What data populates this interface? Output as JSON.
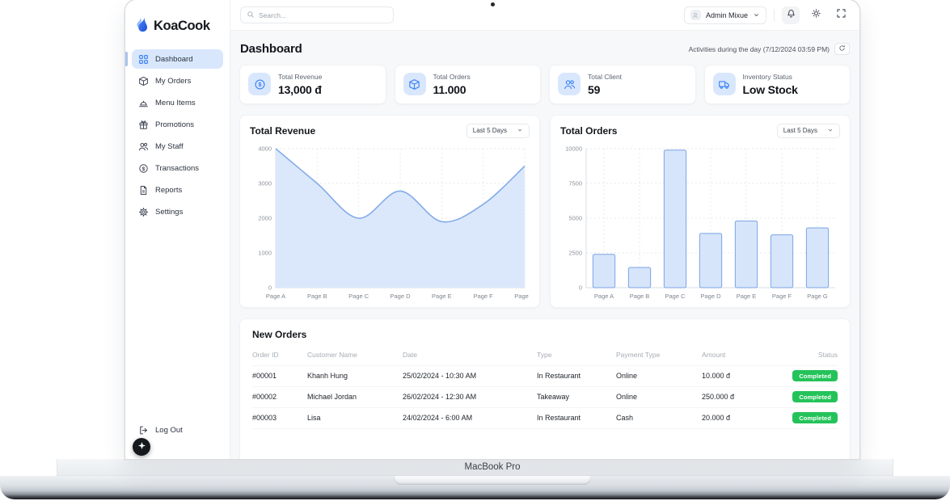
{
  "device": {
    "label": "MacBook Pro"
  },
  "sidebar": {
    "logo": "KoaCook",
    "items": [
      {
        "label": "Dashboard",
        "icon": "grid-icon",
        "active": true
      },
      {
        "label": "My Orders",
        "icon": "box-icon"
      },
      {
        "label": "Menu Items",
        "icon": "cloche-icon"
      },
      {
        "label": "Promotions",
        "icon": "gift-icon"
      },
      {
        "label": "My Staff",
        "icon": "users-icon"
      },
      {
        "label": "Transactions",
        "icon": "dollar-coin-icon"
      },
      {
        "label": "Reports",
        "icon": "document-icon"
      },
      {
        "label": "Settings",
        "icon": "gear-icon"
      }
    ],
    "logout_label": "Log Out"
  },
  "topbar": {
    "search_placeholder": "Search...",
    "user_name": "Admin Mixue"
  },
  "header": {
    "title": "Dashboard",
    "activity_note": "Activities during the day (7/12/2024 03:59 PM)"
  },
  "stat_cards": [
    {
      "label": "Total Revenue",
      "value": "13,000 đ",
      "icon": "dollar-coin-icon"
    },
    {
      "label": "Total Orders",
      "value": "11.000",
      "icon": "box-icon"
    },
    {
      "label": "Total Client",
      "value": "59",
      "icon": "users-icon"
    },
    {
      "label": "Inventory Status",
      "value": "Low Stock",
      "icon": "truck-icon"
    }
  ],
  "chart_data": [
    {
      "type": "area",
      "title": "Total Revenue",
      "filter_label": "Last 5 Days",
      "categories": [
        "Page A",
        "Page B",
        "Page C",
        "Page D",
        "Page E",
        "Page F",
        "Page G"
      ],
      "values": [
        4000,
        3000,
        2000,
        2780,
        1900,
        2400,
        3500
      ],
      "ylim": [
        0,
        4000
      ],
      "yticks": [
        0,
        1000,
        2000,
        3000,
        4000
      ],
      "grid": true,
      "legend": false,
      "line_color": "#84abe8",
      "fill_color": "#dbe8fb"
    },
    {
      "type": "bar",
      "title": "Total Orders",
      "filter_label": "Last 5 Days",
      "categories": [
        "Page A",
        "Page B",
        "Page C",
        "Page D",
        "Page E",
        "Page F",
        "Page G"
      ],
      "values": [
        2400,
        1450,
        9900,
        3900,
        4800,
        3800,
        4300
      ],
      "ylim": [
        0,
        10000
      ],
      "yticks": [
        0,
        2500,
        5000,
        7500,
        10000
      ],
      "grid": true,
      "legend": false,
      "bar_fill": "#d7e5fa",
      "bar_stroke": "#7aa4e6"
    }
  ],
  "orders": {
    "title": "New Orders",
    "columns": [
      "Order ID",
      "Customer Name",
      "Date",
      "Type",
      "Payment Type",
      "Amount",
      "Status"
    ],
    "rows": [
      {
        "id": "#00001",
        "customer": "Khanh Hung",
        "date": "25/02/2024 - 10:30 AM",
        "type": "In Restaurant",
        "payment": "Online",
        "amount": "10.000 đ",
        "status": "Completed"
      },
      {
        "id": "#00002",
        "customer": "Michael Jordan",
        "date": "26/02/2024 - 12:30 AM",
        "type": "Takeaway",
        "payment": "Online",
        "amount": "250.000 đ",
        "status": "Completed"
      },
      {
        "id": "#00003",
        "customer": "Lisa",
        "date": "24/02/2024 - 6:00 AM",
        "type": "In Restaurant",
        "payment": "Cash",
        "amount": "20.000 đ",
        "status": "Completed"
      }
    ]
  },
  "colors": {
    "accent_blue": "#3b82f6",
    "active_item_bg": "#d9e7fd",
    "icon_chip_bg": "#d9e7fd",
    "badge_green": "#24c35a",
    "main_bg": "#f7f8fa",
    "chart_line": "#84abe8",
    "chart_fill": "#dbe8fb",
    "bar_fill": "#d7e5fa",
    "bar_stroke": "#7aa4e6"
  }
}
